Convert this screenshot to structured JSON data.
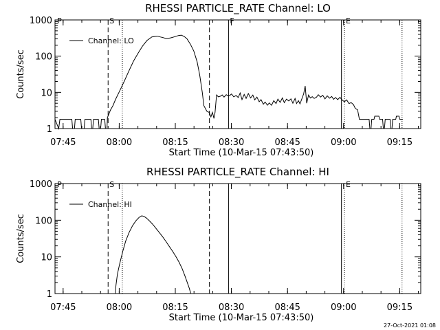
{
  "chart_data": [
    {
      "type": "line",
      "title": "RHESSI PARTICLE_RATE Channel: LO",
      "xlabel": "Start Time (10-Mar-15 07:43:50)",
      "ylabel": "Counts/sec",
      "yscale": "log",
      "ylim": [
        1,
        1000
      ],
      "xlim_minutes": [
        -1.0,
        96.8
      ],
      "xtick_labels": [
        "07:45",
        "08:00",
        "08:15",
        "08:30",
        "08:45",
        "09:00",
        "09:15"
      ],
      "xtick_minutes": [
        1.17,
        16.17,
        31.17,
        46.17,
        61.17,
        76.17,
        91.17
      ],
      "ytick_labels": [
        "1",
        "10",
        "100",
        "1000"
      ],
      "ytick_values": [
        1,
        10,
        100,
        1000
      ],
      "legend": {
        "label": "Channel: LO",
        "position": "top-left"
      },
      "markers": [
        {
          "label": "P",
          "minute": -0.8,
          "style": "none"
        },
        {
          "label": "S",
          "minute": 13.2,
          "style": "dashed"
        },
        {
          "label": "",
          "minute": 17.0,
          "style": "dotted"
        },
        {
          "label": "",
          "minute": 40.3,
          "style": "dashed"
        },
        {
          "label": "F",
          "minute": 45.4,
          "style": "solid"
        },
        {
          "label": "",
          "minute": 75.6,
          "style": "solid"
        },
        {
          "label": "E",
          "minute": 76.4,
          "style": "dotted"
        },
        {
          "label": "",
          "minute": 91.8,
          "style": "dotted"
        }
      ],
      "series": [
        {
          "name": "Channel: LO",
          "points": [
            [
              -1.0,
              1.8
            ],
            [
              0.0,
              1.0
            ],
            [
              0.3,
              1.8
            ],
            [
              3.5,
              1.8
            ],
            [
              3.7,
              1.0
            ],
            [
              4.2,
              1.0
            ],
            [
              4.4,
              1.8
            ],
            [
              5.9,
              1.8
            ],
            [
              6.1,
              1.0
            ],
            [
              6.8,
              1.0
            ],
            [
              7.0,
              1.8
            ],
            [
              8.6,
              1.8
            ],
            [
              8.8,
              1.0
            ],
            [
              9.1,
              1.0
            ],
            [
              9.3,
              1.8
            ],
            [
              10.6,
              1.8
            ],
            [
              10.8,
              1.0
            ],
            [
              11.2,
              1.0
            ],
            [
              11.4,
              1.8
            ],
            [
              12.3,
              1.8
            ],
            [
              12.5,
              1.0
            ],
            [
              12.9,
              1.0
            ],
            [
              13.0,
              2.0
            ],
            [
              13.4,
              2.5
            ],
            [
              13.8,
              3.2
            ],
            [
              14.5,
              4.3
            ],
            [
              15.2,
              6.4
            ],
            [
              16.3,
              11
            ],
            [
              17.5,
              20
            ],
            [
              18.7,
              38
            ],
            [
              20.0,
              73
            ],
            [
              21.2,
              120
            ],
            [
              22.4,
              190
            ],
            [
              23.6,
              270
            ],
            [
              24.9,
              340
            ],
            [
              25.8,
              350
            ],
            [
              26.4,
              355
            ],
            [
              27.1,
              340
            ],
            [
              27.9,
              325
            ],
            [
              28.8,
              305
            ],
            [
              29.9,
              320
            ],
            [
              31.1,
              345
            ],
            [
              32.0,
              370
            ],
            [
              32.8,
              380
            ],
            [
              33.6,
              345
            ],
            [
              34.3,
              300
            ],
            [
              35.2,
              215
            ],
            [
              36.1,
              140
            ],
            [
              37.0,
              70
            ],
            [
              37.7,
              30
            ],
            [
              38.4,
              9.8
            ],
            [
              38.8,
              4.3
            ],
            [
              39.6,
              3.0
            ],
            [
              40.2,
              2.8
            ],
            [
              40.7,
              2.1
            ],
            [
              41.1,
              2.8
            ],
            [
              41.5,
              1.9
            ],
            [
              41.8,
              2.8
            ],
            [
              42.2,
              8.5
            ],
            [
              42.7,
              7.5
            ],
            [
              43.2,
              7.8
            ],
            [
              43.7,
              8.5
            ],
            [
              44.2,
              7.4
            ],
            [
              44.8,
              8.6
            ],
            [
              45.2,
              8.2
            ],
            [
              45.6,
              8.0
            ],
            [
              46.2,
              9.0
            ],
            [
              46.8,
              7.5
            ],
            [
              47.4,
              8.2
            ],
            [
              48.0,
              7.2
            ],
            [
              48.5,
              9.6
            ],
            [
              49.0,
              6.3
            ],
            [
              49.6,
              8.8
            ],
            [
              50.1,
              6.8
            ],
            [
              50.7,
              9.3
            ],
            [
              51.3,
              7.0
            ],
            [
              51.9,
              8.4
            ],
            [
              52.4,
              6.2
            ],
            [
              53.0,
              7.4
            ],
            [
              53.6,
              5.5
            ],
            [
              54.1,
              6.3
            ],
            [
              54.7,
              4.7
            ],
            [
              55.2,
              5.4
            ],
            [
              55.8,
              4.4
            ],
            [
              56.3,
              5.1
            ],
            [
              56.9,
              4.4
            ],
            [
              57.5,
              5.9
            ],
            [
              58.1,
              4.9
            ],
            [
              58.6,
              6.5
            ],
            [
              59.2,
              5.3
            ],
            [
              59.8,
              7.0
            ],
            [
              60.3,
              5.2
            ],
            [
              60.9,
              6.5
            ],
            [
              61.5,
              5.8
            ],
            [
              62.1,
              6.6
            ],
            [
              62.6,
              5.0
            ],
            [
              63.2,
              6.8
            ],
            [
              63.6,
              4.9
            ],
            [
              64.1,
              5.9
            ],
            [
              64.5,
              4.8
            ],
            [
              64.9,
              6.2
            ],
            [
              65.5,
              9.1
            ],
            [
              65.9,
              15
            ],
            [
              66.3,
              5.0
            ],
            [
              66.8,
              8.4
            ],
            [
              67.3,
              7.0
            ],
            [
              67.8,
              7.6
            ],
            [
              68.3,
              6.8
            ],
            [
              68.9,
              7.3
            ],
            [
              69.4,
              8.6
            ],
            [
              70.0,
              7.4
            ],
            [
              70.6,
              8.3
            ],
            [
              71.2,
              6.6
            ],
            [
              71.8,
              8.0
            ],
            [
              72.4,
              6.9
            ],
            [
              73.0,
              7.7
            ],
            [
              73.5,
              6.4
            ],
            [
              74.0,
              7.2
            ],
            [
              74.6,
              6.3
            ],
            [
              75.2,
              7.3
            ],
            [
              75.8,
              6.1
            ],
            [
              76.4,
              5.5
            ],
            [
              77.0,
              6.2
            ],
            [
              77.6,
              4.9
            ],
            [
              78.2,
              5.2
            ],
            [
              78.8,
              4.6
            ],
            [
              79.3,
              3.6
            ],
            [
              79.9,
              3.3
            ],
            [
              80.4,
              1.8
            ],
            [
              83.0,
              1.8
            ],
            [
              83.2,
              1.0
            ],
            [
              83.5,
              1.0
            ],
            [
              83.7,
              1.8
            ],
            [
              84.3,
              1.8
            ],
            [
              84.5,
              2.2
            ],
            [
              85.6,
              2.2
            ],
            [
              85.8,
              1.8
            ],
            [
              86.6,
              1.8
            ],
            [
              86.8,
              1.0
            ],
            [
              87.1,
              1.0
            ],
            [
              87.3,
              1.8
            ],
            [
              88.6,
              1.8
            ],
            [
              88.8,
              1.0
            ],
            [
              89.1,
              1.0
            ],
            [
              89.3,
              1.8
            ],
            [
              90.1,
              1.8
            ],
            [
              90.3,
              2.2
            ],
            [
              91.0,
              2.2
            ],
            [
              91.2,
              1.8
            ],
            [
              92.0,
              1.8
            ]
          ]
        }
      ]
    },
    {
      "type": "line",
      "title": "RHESSI PARTICLE_RATE Channel: HI",
      "xlabel": "Start Time (10-Mar-15 07:43:50)",
      "ylabel": "Counts/sec",
      "yscale": "log",
      "ylim": [
        1,
        1000
      ],
      "xlim_minutes": [
        -1.0,
        96.8
      ],
      "xtick_labels": [
        "07:45",
        "08:00",
        "08:15",
        "08:30",
        "08:45",
        "09:00",
        "09:15"
      ],
      "xtick_minutes": [
        1.17,
        16.17,
        31.17,
        46.17,
        61.17,
        76.17,
        91.17
      ],
      "ytick_labels": [
        "1",
        "10",
        "100",
        "1000"
      ],
      "ytick_values": [
        1,
        10,
        100,
        1000
      ],
      "legend": {
        "label": "Channel: HI",
        "position": "top-left"
      },
      "markers": [
        {
          "label": "P",
          "minute": -0.8,
          "style": "none"
        },
        {
          "label": "S",
          "minute": 13.2,
          "style": "dashed"
        },
        {
          "label": "",
          "minute": 17.0,
          "style": "dotted"
        },
        {
          "label": "",
          "minute": 40.3,
          "style": "dashed"
        },
        {
          "label": "",
          "minute": 45.4,
          "style": "solid"
        },
        {
          "label": "",
          "minute": 75.6,
          "style": "solid"
        },
        {
          "label": "E",
          "minute": 76.4,
          "style": "dotted"
        },
        {
          "label": "",
          "minute": 91.8,
          "style": "dotted"
        }
      ],
      "series": [
        {
          "name": "Channel: HI",
          "points": [
            [
              15.1,
              1.0
            ],
            [
              15.3,
              1.7
            ],
            [
              15.7,
              3.4
            ],
            [
              16.3,
              6.5
            ],
            [
              17.1,
              14
            ],
            [
              17.9,
              27
            ],
            [
              18.8,
              46
            ],
            [
              19.7,
              70
            ],
            [
              20.6,
              96
            ],
            [
              21.5,
              120
            ],
            [
              22.2,
              132
            ],
            [
              22.8,
              127
            ],
            [
              23.4,
              116
            ],
            [
              24.2,
              97
            ],
            [
              25.1,
              78
            ],
            [
              26.0,
              60
            ],
            [
              26.9,
              46
            ],
            [
              27.8,
              35
            ],
            [
              28.7,
              26
            ],
            [
              29.6,
              19
            ],
            [
              30.5,
              14
            ],
            [
              31.4,
              10
            ],
            [
              32.2,
              7.1
            ],
            [
              33.0,
              4.8
            ],
            [
              33.7,
              3.1
            ],
            [
              34.3,
              2.1
            ],
            [
              34.9,
              1.4
            ],
            [
              35.3,
              1.0
            ]
          ]
        }
      ]
    }
  ],
  "footer": {
    "timestamp": "27-Oct-2021 01:08"
  }
}
